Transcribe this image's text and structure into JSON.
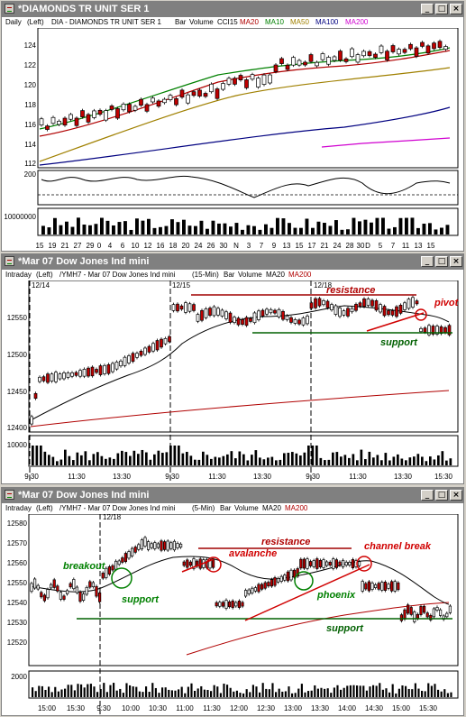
{
  "windows": [
    {
      "title": "*DIAMONDS TR UNIT SER 1",
      "info": [
        {
          "text": "Daily",
          "color": "#000000"
        },
        {
          "text": "(Left)",
          "color": "#000000"
        },
        {
          "text": "DIA - DIAMONDS TR UNIT SER 1",
          "color": "#000000"
        },
        {
          "text": "Bar",
          "color": "#000000"
        },
        {
          "text": "Volume",
          "color": "#000000"
        },
        {
          "text": "CCI15",
          "color": "#000000"
        },
        {
          "text": "MA20",
          "color": "#b00000"
        },
        {
          "text": "MA10",
          "color": "#008000"
        },
        {
          "text": "MA50",
          "color": "#a08000"
        },
        {
          "text": "MA100",
          "color": "#000080"
        },
        {
          "text": "MA200",
          "color": "#d000d0"
        }
      ],
      "y_ticks": [
        "124",
        "122",
        "120",
        "118",
        "116",
        "114",
        "112"
      ],
      "cci_tick": "200",
      "volume_tick": "10000000",
      "x_ticks": [
        "15",
        "19",
        "21",
        "27",
        "29",
        "0",
        "4",
        "6",
        "10",
        "12",
        "16",
        "18",
        "20",
        "24",
        "26",
        "30",
        "N",
        "3",
        "7",
        "9",
        "13",
        "15",
        "17",
        "21",
        "24",
        "28",
        "30",
        "D",
        "5",
        "7",
        "11",
        "13",
        "15"
      ]
    },
    {
      "title": "*Mar 07  Dow Jones Ind mini",
      "info": [
        {
          "text": "Intraday",
          "color": "#000000"
        },
        {
          "text": "(Left)",
          "color": "#000000"
        },
        {
          "text": "/YMH7 - Mar 07  Dow Jones Ind mini",
          "color": "#000000"
        },
        {
          "text": "(15-Min)",
          "color": "#000000"
        },
        {
          "text": "Bar",
          "color": "#000000"
        },
        {
          "text": "Volume",
          "color": "#000000"
        },
        {
          "text": "MA20",
          "color": "#000000"
        },
        {
          "text": "MA200",
          "color": "#b00000"
        }
      ],
      "dates": [
        "12/14",
        "12/15",
        "12/18"
      ],
      "y_ticks": [
        "12550",
        "12500",
        "12450",
        "12400"
      ],
      "volume_tick": "10000",
      "x_ticks": [
        "9:30",
        "11:30",
        "13:30",
        "9:30",
        "11:30",
        "13:30",
        "9:30",
        "11:30",
        "13:30",
        "15:30"
      ],
      "annotations": {
        "resistance": "resistance",
        "pivot": "pivot",
        "support": "support"
      }
    },
    {
      "title": "*Mar 07  Dow Jones Ind mini",
      "info": [
        {
          "text": "Intraday",
          "color": "#000000"
        },
        {
          "text": "(Left)",
          "color": "#000000"
        },
        {
          "text": "/YMH7 - Mar 07  Dow Jones Ind mini",
          "color": "#000000"
        },
        {
          "text": "(5-Min)",
          "color": "#000000"
        },
        {
          "text": "Bar",
          "color": "#000000"
        },
        {
          "text": "Volume",
          "color": "#000000"
        },
        {
          "text": "MA20",
          "color": "#000000"
        },
        {
          "text": "MA200",
          "color": "#b00000"
        }
      ],
      "dates": [
        "12/18"
      ],
      "y_ticks": [
        "12580",
        "12570",
        "12560",
        "12550",
        "12540",
        "12530",
        "12520"
      ],
      "volume_tick": "2000",
      "x_ticks": [
        "15:00",
        "15:30",
        "9:30",
        "10:00",
        "10:30",
        "11:00",
        "11:30",
        "12:00",
        "12:30",
        "13:00",
        "13:30",
        "14:00",
        "14:30",
        "15:00",
        "15:30"
      ],
      "annotations": {
        "breakout": "breakout",
        "support_left": "support",
        "resistance": "resistance",
        "avalanche": "avalanche",
        "channel_break": "channel break",
        "phoenix": "phoenix",
        "support_bottom": "support"
      }
    }
  ],
  "buttons": {
    "minimize": "_",
    "maximize": "□",
    "close": "×"
  }
}
